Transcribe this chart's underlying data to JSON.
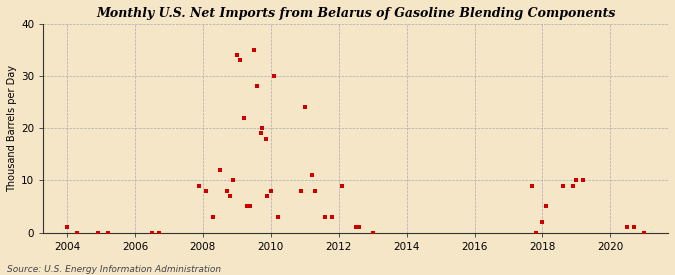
{
  "title": "Monthly U.S. Net Imports from Belarus of Gasoline Blending Components",
  "ylabel": "Thousand Barrels per Day",
  "source": "Source: U.S. Energy Information Administration",
  "bg_color": "#f5e6c8",
  "marker_color": "#cc0000",
  "ylim": [
    0,
    40
  ],
  "yticks": [
    0,
    10,
    20,
    30,
    40
  ],
  "xlim_start": 2003.3,
  "xlim_end": 2021.7,
  "xticks": [
    2004,
    2006,
    2008,
    2010,
    2012,
    2014,
    2016,
    2018,
    2020
  ],
  "data_points": [
    [
      2004.0,
      1
    ],
    [
      2004.3,
      0
    ],
    [
      2004.9,
      0
    ],
    [
      2005.2,
      0
    ],
    [
      2006.5,
      0
    ],
    [
      2006.7,
      0
    ],
    [
      2007.9,
      9
    ],
    [
      2008.1,
      8
    ],
    [
      2008.3,
      3
    ],
    [
      2008.5,
      12
    ],
    [
      2008.7,
      8
    ],
    [
      2008.8,
      7
    ],
    [
      2008.9,
      10
    ],
    [
      2009.0,
      34
    ],
    [
      2009.1,
      33
    ],
    [
      2009.2,
      22
    ],
    [
      2009.3,
      5
    ],
    [
      2009.4,
      5
    ],
    [
      2009.5,
      35
    ],
    [
      2009.6,
      28
    ],
    [
      2009.7,
      19
    ],
    [
      2009.75,
      20
    ],
    [
      2009.85,
      18
    ],
    [
      2009.9,
      7
    ],
    [
      2010.0,
      8
    ],
    [
      2010.1,
      30
    ],
    [
      2010.2,
      3
    ],
    [
      2010.9,
      8
    ],
    [
      2011.0,
      24
    ],
    [
      2011.2,
      11
    ],
    [
      2011.3,
      8
    ],
    [
      2011.6,
      3
    ],
    [
      2011.8,
      3
    ],
    [
      2012.1,
      9
    ],
    [
      2012.5,
      1
    ],
    [
      2012.6,
      1
    ],
    [
      2013.0,
      0
    ],
    [
      2017.7,
      9
    ],
    [
      2017.8,
      0
    ],
    [
      2018.0,
      2
    ],
    [
      2018.1,
      5
    ],
    [
      2018.6,
      9
    ],
    [
      2018.9,
      9
    ],
    [
      2019.0,
      10
    ],
    [
      2019.2,
      10
    ],
    [
      2020.5,
      1
    ],
    [
      2020.7,
      1
    ],
    [
      2021.0,
      0
    ]
  ]
}
